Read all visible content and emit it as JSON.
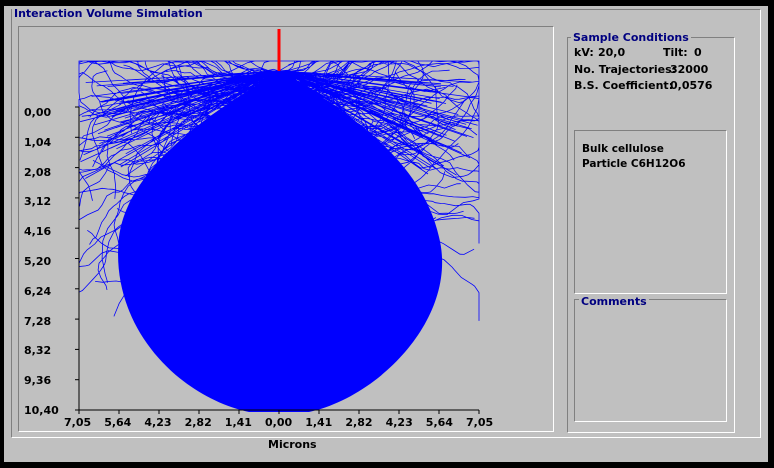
{
  "window": {
    "title": "Interaction Volume Simulation"
  },
  "axes": {
    "y_ticks": [
      "0,00",
      "1,04",
      "2,08",
      "3,12",
      "4,16",
      "5,20",
      "6,24",
      "7,28",
      "8,32",
      "9,36",
      "10,40"
    ],
    "x_ticks": [
      "7,05",
      "5,64",
      "4,23",
      "2,82",
      "1,41",
      "0,00",
      "1,41",
      "2,82",
      "4,23",
      "5,64",
      "7,05"
    ],
    "x_label": "Microns"
  },
  "sample_conditions": {
    "title": "Sample Conditions",
    "kv_label": "kV:",
    "kv_value": "20,0",
    "tilt_label": "Tilt:",
    "tilt_value": "0",
    "trajectories_label": "No. Trajectories:",
    "trajectories_value": "32000",
    "bs_label": "B.S. Coefficient:",
    "bs_value": "0,0576"
  },
  "material": {
    "line1": "Bulk cellulose",
    "line2": "Particle C6H12O6"
  },
  "comments": {
    "title": "Comments",
    "text": ""
  },
  "colors": {
    "trajectory": "#0000ff",
    "beam": "#ff0000",
    "plot_bg": "#c0c0c0"
  }
}
